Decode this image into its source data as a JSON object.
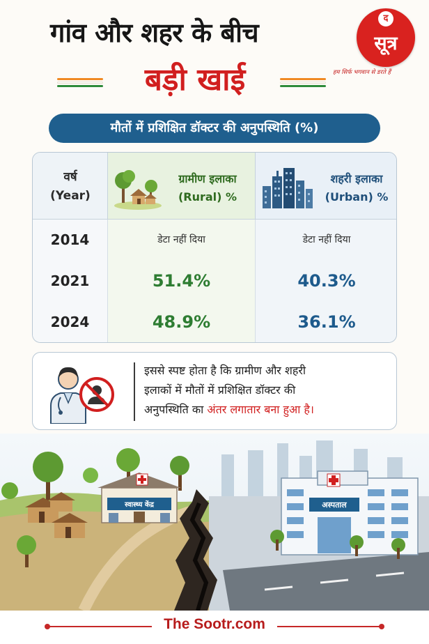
{
  "header": {
    "title_line1": "गांव और शहर के बीच",
    "title_line2": "बड़ी खाई",
    "accent_color": "#d11f1f"
  },
  "logo": {
    "top_letter": "द",
    "main_text": "सूत्र",
    "tagline": "हम सिर्फ भगवान से डरते हैं",
    "brand_color": "#d9221f"
  },
  "subtitle": "मौतों में प्रशिक्षित डॉक्टर की अनुपस्थिति (%)",
  "table": {
    "year_header_line1": "वर्ष",
    "year_header_line2": "(Year)",
    "rural_header_line1": "ग्रामीण इलाका",
    "rural_header_line2": "(Rural) %",
    "urban_header_line1": "शहरी इलाका",
    "urban_header_line2": "(Urban) %",
    "rows": [
      {
        "year": "2014",
        "rural": "डेटा नहीं दिया",
        "urban": "डेटा नहीं दिया"
      },
      {
        "year": "2021",
        "rural": "51.4%",
        "urban": "40.3%"
      },
      {
        "year": "2024",
        "rural": "48.9%",
        "urban": "36.1%"
      }
    ],
    "rural_color": "#2e7d32",
    "urban_color": "#1d5a8c"
  },
  "note": {
    "line1": "इससे स्पष्ट होता है कि ग्रामीण और शहरी",
    "line2": "इलाकों में मौतों में प्रशिक्षित डॉक्टर की",
    "line3_plain": "अनुपस्थिति का ",
    "line3_highlight": "अंतर लगातार बना हुआ है।"
  },
  "scene": {
    "health_center_sign": "स्वास्थ्य केंद्र",
    "hospital_sign": "अस्पताल"
  },
  "footer": {
    "site": "The Sootr.com"
  }
}
